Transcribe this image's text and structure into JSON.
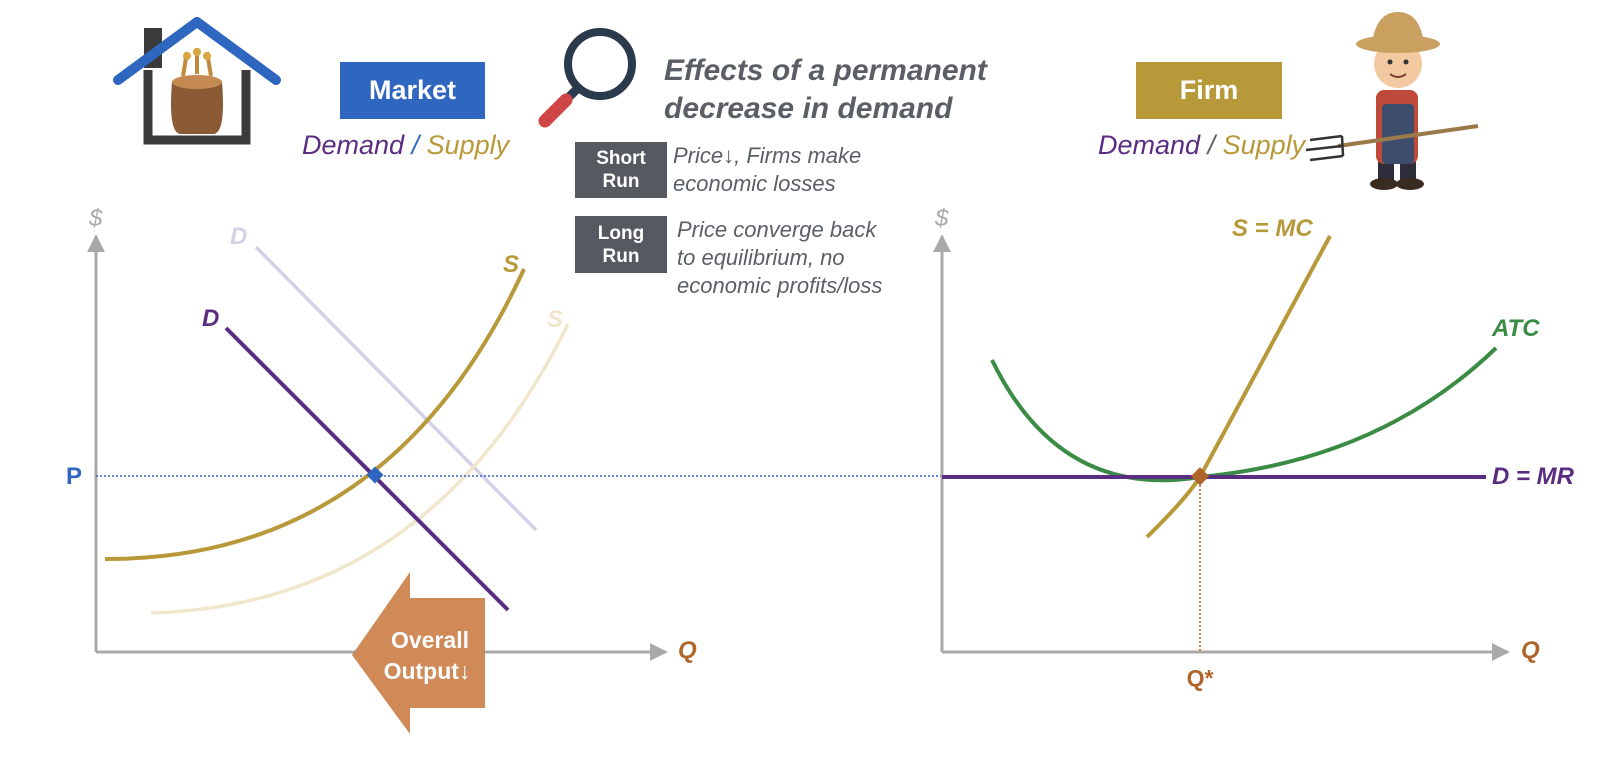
{
  "title": {
    "line1": "Effects of a permanent",
    "line2": "decrease in demand"
  },
  "market": {
    "label": "Market",
    "demand": "Demand",
    "slash": "/",
    "supply": "Supply"
  },
  "firm": {
    "label": "Firm",
    "demand": "Demand",
    "slash": "/",
    "supply": "Supply"
  },
  "short_run": {
    "tag_line1": "Short",
    "tag_line2": "Run",
    "text_line1": "Price↓, Firms make",
    "text_line2": "economic losses"
  },
  "long_run": {
    "tag_line1": "Long",
    "tag_line2": "Run",
    "text_line1": "Price converge back",
    "text_line2": "to equilibrium, no",
    "text_line3": "economic profits/loss"
  },
  "arrow": {
    "line1": "Overall",
    "line2": "Output↓"
  },
  "market_graph": {
    "y_axis": "$",
    "x_axis": "Q",
    "price_label": "P",
    "old_demand": "D",
    "new_demand": "D",
    "supply": "S",
    "new_supply": "S"
  },
  "firm_graph": {
    "y_axis": "$",
    "x_axis": "Q",
    "q_star": "Q*",
    "mc": "S = MC",
    "atc": "ATC",
    "dmr": "D = MR"
  },
  "colors": {
    "market_blue": "#2e66c0",
    "firm_gold": "#b8993a",
    "demand_purple": "#5b2d82",
    "supply_gold": "#b8993a",
    "atc_green": "#3a8c45",
    "axis_gray": "#a9a9a9",
    "arrow_orange": "#cf8a57",
    "q_orange": "#b0662a",
    "tag_gray": "#555a61"
  },
  "icons": [
    "house-grain-icon",
    "magnifier-icon",
    "farmer-icon"
  ]
}
